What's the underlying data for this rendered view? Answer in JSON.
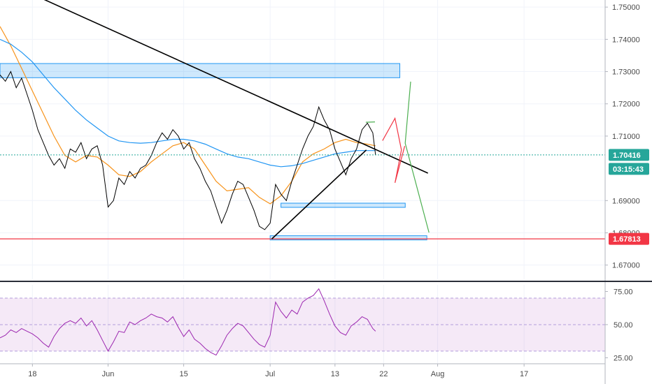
{
  "chart_data": {
    "type": "line",
    "price_axis": {
      "ticks": [
        "1.75000",
        "1.74000",
        "1.73000",
        "1.72000",
        "1.71000",
        "1.69000",
        "1.68000",
        "1.67000"
      ],
      "tick_values": [
        1.75,
        1.74,
        1.73,
        1.72,
        1.71,
        1.69,
        1.68,
        1.67
      ],
      "range": [
        1.6656,
        1.7522
      ]
    },
    "rsi_axis": {
      "ticks": [
        "75.00",
        "50.00",
        "25.00"
      ],
      "tick_values": [
        75,
        50,
        25
      ],
      "range": [
        21,
        80
      ]
    },
    "time_axis": {
      "ticks": [
        "18",
        "Jun",
        "15",
        "Jul",
        "13",
        "22",
        "Aug",
        "17"
      ],
      "tick_days": [
        0,
        14,
        28,
        44,
        56,
        65,
        75,
        91
      ],
      "range_days": [
        -6,
        106
      ]
    },
    "last_price": {
      "label": "1.70416",
      "value": 1.70416,
      "color": "#26a69a"
    },
    "countdown": {
      "label": "03:15:43",
      "color": "#26a69a"
    },
    "support_line": {
      "label": "1.67813",
      "value": 1.67813,
      "color": "#f23645"
    },
    "zones": [
      {
        "name": "resistance-zone",
        "day_start": -6,
        "day_end": 68,
        "price_top": 1.7325,
        "price_bottom": 1.7281
      },
      {
        "name": "support-zone-mid",
        "day_start": 46,
        "day_end": 69,
        "price_top": 1.6892,
        "price_bottom": 1.6879
      },
      {
        "name": "support-zone-low",
        "day_start": 44,
        "day_end": 73,
        "price_top": 1.6791,
        "price_bottom": 1.6778
      }
    ],
    "trendlines": [
      {
        "name": "descending-trendline",
        "points": [
          [
            0,
            1.754
          ],
          [
            73.2,
            1.6985
          ]
        ],
        "color": "#000000"
      },
      {
        "name": "ascending-trendline",
        "points": [
          [
            44.3,
            1.6781
          ],
          [
            61.8,
            1.7057
          ]
        ],
        "color": "#000000"
      }
    ],
    "projections": [
      {
        "name": "red-projection",
        "color": "#f23645",
        "points": [
          [
            64.8,
            1.7086
          ],
          [
            67.1,
            1.7155
          ],
          [
            68.3,
            1.7057
          ],
          [
            67.1,
            1.6955
          ],
          [
            68.9,
            1.7069
          ]
        ]
      },
      {
        "name": "green-projection",
        "color": "#4caf50",
        "points": [
          [
            70.0,
            1.7269
          ],
          [
            69.0,
            1.7078
          ],
          [
            73.4,
            1.6801
          ]
        ]
      },
      {
        "name": "green-short-projection",
        "color": "#4caf50",
        "points": [
          [
            61.7,
            1.7143
          ],
          [
            63.4,
            1.7144
          ]
        ]
      }
    ],
    "moving_averages": [
      {
        "name": "EMA fast",
        "color": "#f7931a",
        "points": [
          [
            -6,
            1.744
          ],
          [
            -4,
            1.738
          ],
          [
            -2,
            1.731
          ],
          [
            0,
            1.724
          ],
          [
            2,
            1.717
          ],
          [
            4,
            1.71
          ],
          [
            6,
            1.704
          ],
          [
            8,
            1.702
          ],
          [
            10,
            1.704
          ],
          [
            12,
            1.7035
          ],
          [
            14,
            1.701
          ],
          [
            16,
            1.698
          ],
          [
            18,
            1.6975
          ],
          [
            20,
            1.699
          ],
          [
            22,
            1.702
          ],
          [
            24,
            1.7045
          ],
          [
            26,
            1.707
          ],
          [
            28,
            1.708
          ],
          [
            30,
            1.706
          ],
          [
            32,
            1.701
          ],
          [
            34,
            1.696
          ],
          [
            36,
            1.693
          ],
          [
            38,
            1.6935
          ],
          [
            40,
            1.694
          ],
          [
            42,
            1.691
          ],
          [
            44,
            1.689
          ],
          [
            46,
            1.6915
          ],
          [
            48,
            1.696
          ],
          [
            50,
            1.702
          ],
          [
            52,
            1.7045
          ],
          [
            54,
            1.706
          ],
          [
            56,
            1.708
          ],
          [
            58,
            1.709
          ],
          [
            60,
            1.708
          ],
          [
            62,
            1.7075
          ],
          [
            63.5,
            1.707
          ]
        ]
      },
      {
        "name": "EMA slow",
        "color": "#2196f3",
        "points": [
          [
            -6,
            1.74
          ],
          [
            -4,
            1.7385
          ],
          [
            -2,
            1.736
          ],
          [
            0,
            1.733
          ],
          [
            2,
            1.729
          ],
          [
            4,
            1.725
          ],
          [
            6,
            1.7215
          ],
          [
            8,
            1.718
          ],
          [
            10,
            1.715
          ],
          [
            12,
            1.7125
          ],
          [
            14,
            1.71
          ],
          [
            16,
            1.7085
          ],
          [
            18,
            1.708
          ],
          [
            20,
            1.7078
          ],
          [
            22,
            1.708
          ],
          [
            24,
            1.7085
          ],
          [
            26,
            1.709
          ],
          [
            28,
            1.709
          ],
          [
            30,
            1.7085
          ],
          [
            32,
            1.7075
          ],
          [
            34,
            1.706
          ],
          [
            36,
            1.7045
          ],
          [
            38,
            1.7035
          ],
          [
            40,
            1.703
          ],
          [
            42,
            1.702
          ],
          [
            44,
            1.701
          ],
          [
            46,
            1.7005
          ],
          [
            48,
            1.7008
          ],
          [
            50,
            1.7015
          ],
          [
            52,
            1.7025
          ],
          [
            54,
            1.7035
          ],
          [
            56,
            1.7045
          ],
          [
            58,
            1.705
          ],
          [
            60,
            1.7055
          ],
          [
            62,
            1.7055
          ],
          [
            63.5,
            1.7055
          ]
        ]
      }
    ],
    "price_series": {
      "name": "price",
      "color": "#000000",
      "points": [
        [
          -6,
          1.729
        ],
        [
          -5,
          1.727
        ],
        [
          -4,
          1.73
        ],
        [
          -3,
          1.725
        ],
        [
          -2,
          1.728
        ],
        [
          -1,
          1.723
        ],
        [
          0,
          1.718
        ],
        [
          1,
          1.712
        ],
        [
          2,
          1.708
        ],
        [
          3,
          1.704
        ],
        [
          4,
          1.701
        ],
        [
          5,
          1.703
        ],
        [
          6,
          1.7
        ],
        [
          7,
          1.706
        ],
        [
          8,
          1.705
        ],
        [
          9,
          1.708
        ],
        [
          10,
          1.703
        ],
        [
          11,
          1.706
        ],
        [
          12,
          1.707
        ],
        [
          13,
          1.701
        ],
        [
          14,
          1.688
        ],
        [
          15,
          1.69
        ],
        [
          16,
          1.697
        ],
        [
          17,
          1.695
        ],
        [
          18,
          1.699
        ],
        [
          19,
          1.697
        ],
        [
          20,
          1.7
        ],
        [
          21,
          1.701
        ],
        [
          22,
          1.704
        ],
        [
          23,
          1.708
        ],
        [
          24,
          1.711
        ],
        [
          25,
          1.709
        ],
        [
          26,
          1.712
        ],
        [
          27,
          1.71
        ],
        [
          28,
          1.706
        ],
        [
          29,
          1.708
        ],
        [
          30,
          1.703
        ],
        [
          31,
          1.7
        ],
        [
          32,
          1.696
        ],
        [
          33,
          1.693
        ],
        [
          34,
          1.688
        ],
        [
          35,
          1.683
        ],
        [
          36,
          1.687
        ],
        [
          37,
          1.692
        ],
        [
          38,
          1.696
        ],
        [
          39,
          1.695
        ],
        [
          40,
          1.691
        ],
        [
          41,
          1.687
        ],
        [
          42,
          1.682
        ],
        [
          43,
          1.681
        ],
        [
          44,
          1.683
        ],
        [
          45,
          1.695
        ],
        [
          46,
          1.692
        ],
        [
          47,
          1.69
        ],
        [
          48,
          1.696
        ],
        [
          49,
          1.701
        ],
        [
          50,
          1.706
        ],
        [
          51,
          1.71
        ],
        [
          52,
          1.713
        ],
        [
          53,
          1.719
        ],
        [
          54,
          1.715
        ],
        [
          55,
          1.712
        ],
        [
          56,
          1.706
        ],
        [
          57,
          1.702
        ],
        [
          58,
          1.698
        ],
        [
          59,
          1.703
        ],
        [
          60,
          1.706
        ],
        [
          61,
          1.712
        ],
        [
          62,
          1.714
        ],
        [
          63,
          1.711
        ],
        [
          63.5,
          1.7042
        ]
      ]
    },
    "rsi_series": {
      "name": "RSI",
      "color": "#9c27b0",
      "points": [
        [
          -6,
          40
        ],
        [
          -5,
          42
        ],
        [
          -4,
          46
        ],
        [
          -3,
          44
        ],
        [
          -2,
          47
        ],
        [
          -1,
          45
        ],
        [
          0,
          43
        ],
        [
          1,
          40
        ],
        [
          2,
          36
        ],
        [
          3,
          33
        ],
        [
          4,
          41
        ],
        [
          5,
          47
        ],
        [
          6,
          51
        ],
        [
          7,
          53
        ],
        [
          8,
          51
        ],
        [
          9,
          55
        ],
        [
          10,
          49
        ],
        [
          11,
          53
        ],
        [
          12,
          46
        ],
        [
          13,
          38
        ],
        [
          14,
          30
        ],
        [
          15,
          37
        ],
        [
          16,
          45
        ],
        [
          17,
          44
        ],
        [
          18,
          52
        ],
        [
          19,
          50
        ],
        [
          20,
          53
        ],
        [
          21,
          55
        ],
        [
          22,
          58
        ],
        [
          23,
          56
        ],
        [
          24,
          55
        ],
        [
          25,
          52
        ],
        [
          26,
          56
        ],
        [
          27,
          48
        ],
        [
          28,
          41
        ],
        [
          29,
          46
        ],
        [
          30,
          39
        ],
        [
          31,
          36
        ],
        [
          32,
          32
        ],
        [
          33,
          29
        ],
        [
          34,
          27
        ],
        [
          35,
          34
        ],
        [
          36,
          42
        ],
        [
          37,
          47
        ],
        [
          38,
          51
        ],
        [
          39,
          49
        ],
        [
          40,
          44
        ],
        [
          41,
          39
        ],
        [
          42,
          35
        ],
        [
          43,
          33
        ],
        [
          44,
          42
        ],
        [
          45,
          67
        ],
        [
          46,
          60
        ],
        [
          47,
          55
        ],
        [
          48,
          61
        ],
        [
          49,
          58
        ],
        [
          50,
          67
        ],
        [
          51,
          70
        ],
        [
          52,
          72
        ],
        [
          53,
          77
        ],
        [
          54,
          68
        ],
        [
          55,
          58
        ],
        [
          56,
          49
        ],
        [
          57,
          44
        ],
        [
          58,
          42
        ],
        [
          59,
          49
        ],
        [
          60,
          52
        ],
        [
          61,
          56
        ],
        [
          62,
          54
        ],
        [
          63,
          47
        ],
        [
          63.5,
          45
        ]
      ]
    }
  }
}
